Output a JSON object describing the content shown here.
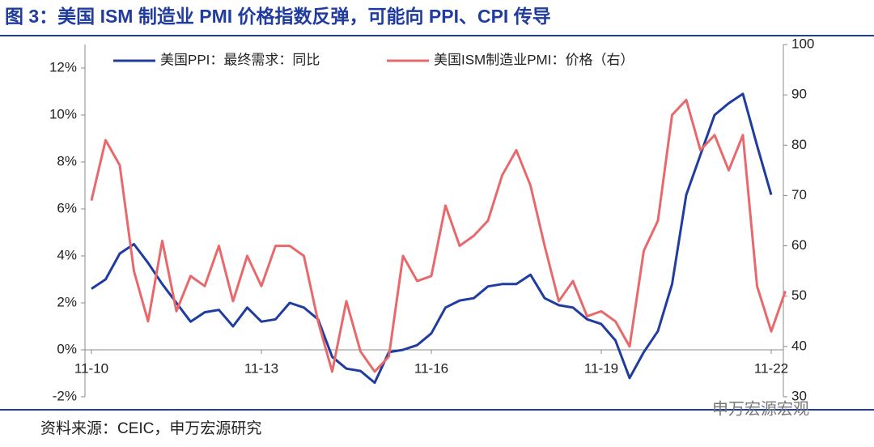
{
  "chart_data": {
    "type": "line",
    "title": "图 3：美国 ISM 制造业 PMI 价格指数反弹，可能向 PPI、CPI 传导",
    "source": "资料来源：CEIC，申万宏源研究",
    "watermark": "申万宏源宏观",
    "categories": [
      "11-10",
      null,
      null,
      null,
      null,
      null,
      null,
      null,
      null,
      null,
      null,
      null,
      "11-13",
      null,
      null,
      null,
      null,
      null,
      null,
      null,
      null,
      null,
      null,
      null,
      "11-16",
      null,
      null,
      null,
      null,
      null,
      null,
      null,
      null,
      null,
      null,
      null,
      "11-19",
      null,
      null,
      null,
      null,
      null,
      null,
      null,
      null,
      null,
      null,
      null,
      "11-22",
      null
    ],
    "series": [
      {
        "name": "美国PPI：最终需求：同比",
        "color": "#1f3c9e",
        "axis": "y",
        "values": [
          2.6,
          3.0,
          4.1,
          4.5,
          3.7,
          2.8,
          2.0,
          1.2,
          1.6,
          1.7,
          1.0,
          1.8,
          1.2,
          1.3,
          2.0,
          1.8,
          1.3,
          -0.3,
          -0.8,
          -0.9,
          -1.4,
          -0.1,
          0.0,
          0.2,
          0.7,
          1.8,
          2.1,
          2.2,
          2.7,
          2.8,
          2.8,
          3.2,
          2.2,
          1.9,
          1.8,
          1.3,
          1.1,
          0.4,
          -1.2,
          -0.1,
          0.8,
          2.8,
          6.6,
          8.3,
          10.0,
          10.5,
          10.9,
          8.7,
          6.6,
          null
        ]
      },
      {
        "name": "美国ISM制造业PMI：价格（右）",
        "color": "#e8696b",
        "axis": "y2",
        "values": [
          69,
          81,
          76,
          55,
          45,
          61,
          47,
          54,
          52,
          60,
          49,
          58,
          52,
          60,
          60,
          58,
          45,
          35,
          49,
          39,
          35,
          38,
          58,
          53,
          54,
          68,
          60,
          62,
          65,
          74,
          79,
          72,
          60,
          49,
          53,
          46,
          47,
          45,
          40,
          59,
          65,
          86,
          89,
          79,
          82,
          75,
          82,
          52,
          43,
          51
        ]
      }
    ],
    "ylim": [
      -2,
      13
    ],
    "yticks": [
      {
        "value": -2,
        "label": "-2%"
      },
      {
        "value": 0,
        "label": "0%"
      },
      {
        "value": 2,
        "label": "2%"
      },
      {
        "value": 4,
        "label": "4%"
      },
      {
        "value": 6,
        "label": "6%"
      },
      {
        "value": 8,
        "label": "8%"
      },
      {
        "value": 10,
        "label": "10%"
      },
      {
        "value": 12,
        "label": "12%"
      }
    ],
    "y2lim": [
      30,
      100
    ],
    "y2ticks": [
      30,
      40,
      50,
      60,
      70,
      80,
      90,
      100
    ]
  }
}
